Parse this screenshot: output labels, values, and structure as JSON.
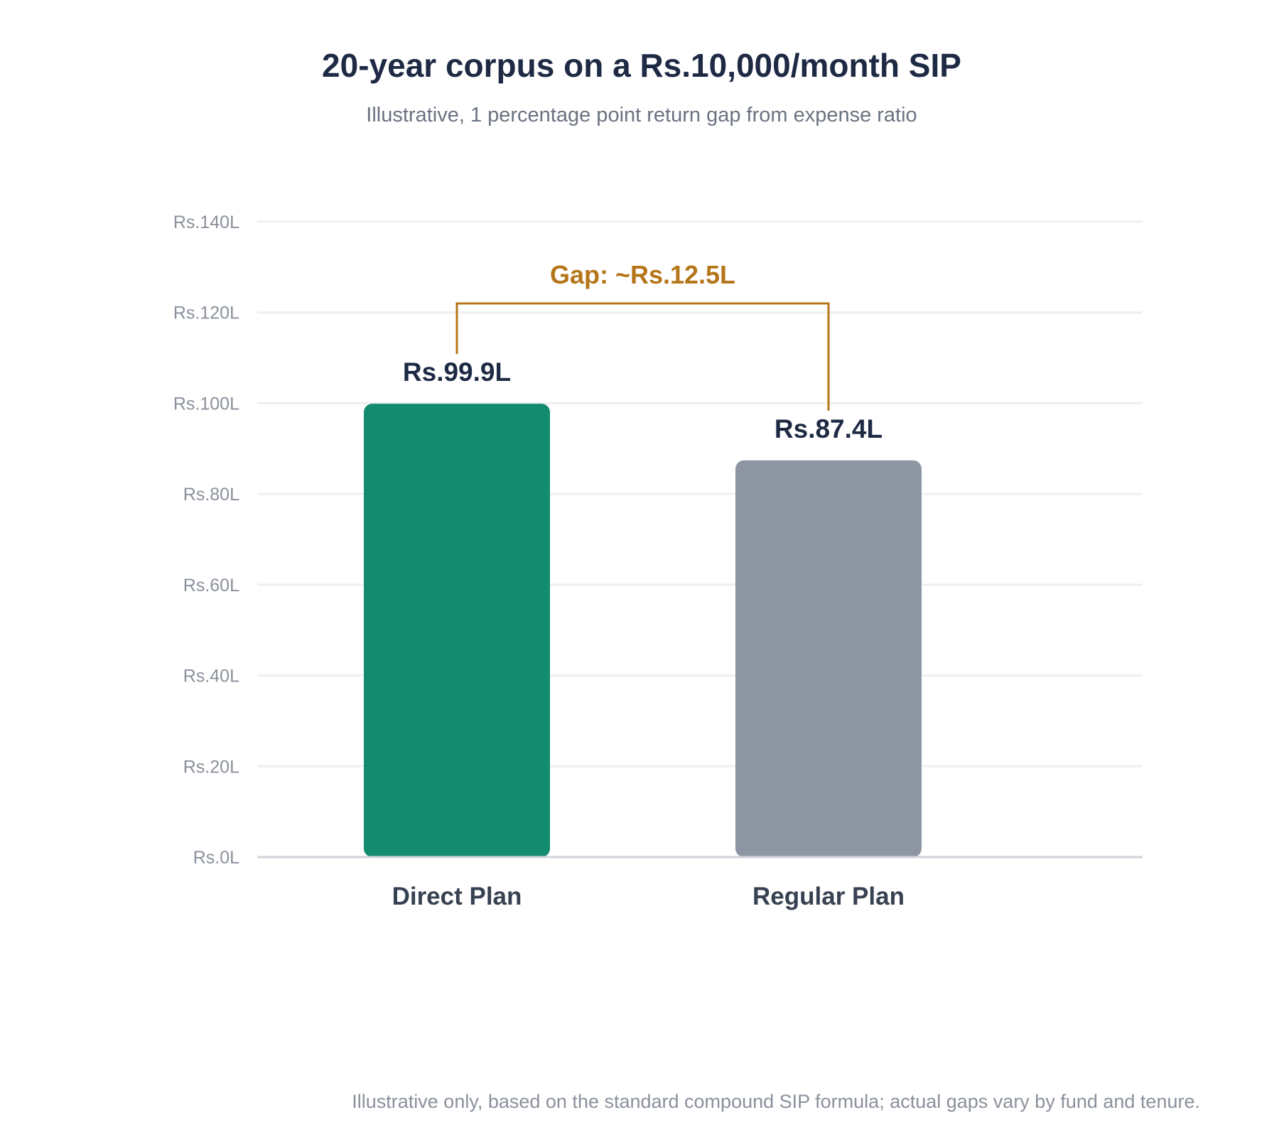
{
  "colors": {
    "title": "#1e2a44",
    "subtitle": "#6b7280",
    "tick": "#8a909b",
    "grid": "#efefef",
    "baseline": "#cfd3d8",
    "category": "#374151",
    "value": "#1e2a44",
    "gap": "#b5761a",
    "footnote": "#8a909b"
  },
  "chart_data": {
    "type": "bar",
    "title": "20-year corpus on a Rs.10,000/month SIP",
    "subtitle": "Illustrative, 1 percentage point return gap from expense ratio",
    "xlabel": "",
    "ylabel": "",
    "ylim": [
      0,
      140
    ],
    "yticks": [
      {
        "value": 0,
        "label": "Rs.0L"
      },
      {
        "value": 20,
        "label": "Rs.20L"
      },
      {
        "value": 40,
        "label": "Rs.40L"
      },
      {
        "value": 60,
        "label": "Rs.60L"
      },
      {
        "value": 80,
        "label": "Rs.80L"
      },
      {
        "value": 100,
        "label": "Rs.100L"
      },
      {
        "value": 120,
        "label": "Rs.120L"
      },
      {
        "value": 140,
        "label": "Rs.140L"
      }
    ],
    "grid": true,
    "legend": "none",
    "bars": [
      {
        "category": "Direct Plan",
        "value": 99.9,
        "label": "Rs.99.9L",
        "color": "#128b6e"
      },
      {
        "category": "Regular Plan",
        "value": 87.4,
        "label": "Rs.87.4L",
        "color": "#8c95a1"
      }
    ],
    "annotation": {
      "text": "Gap: ~Rs.12.5L",
      "bracket_value": 122
    },
    "footnote": "Illustrative only, based on the standard compound SIP formula; actual gaps vary by fund and tenure."
  }
}
